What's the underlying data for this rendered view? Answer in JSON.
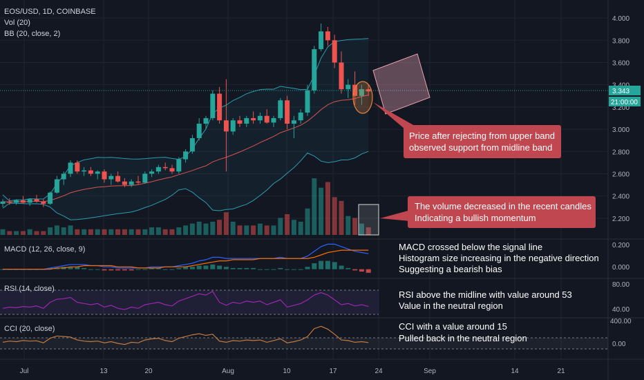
{
  "header": {
    "symbol": "EOS/USD, 1D, COINBASE",
    "vol_label": "Vol (20)",
    "bb_label": "BB (20, close, 2)"
  },
  "price_axis": {
    "ticks": [
      "4.000",
      "3.800",
      "3.600",
      "3.400",
      "3.200",
      "3.000",
      "2.800",
      "2.600",
      "2.400",
      "2.200"
    ],
    "last_price": "3.343",
    "countdown": "21:00:00"
  },
  "indicators": {
    "macd": {
      "label": "MACD (12, 26, close, 9)",
      "ticks": [
        "0.200",
        "0.000"
      ]
    },
    "rsi": {
      "label": "RSI (14, close)",
      "ticks": [
        "80.00",
        "40.00"
      ]
    },
    "cci": {
      "label": "CCI (20, close)",
      "ticks": [
        "400.00",
        "0.00"
      ]
    }
  },
  "time_axis": {
    "ticks": [
      "Jul",
      "13",
      "20",
      "Aug",
      "10",
      "17",
      "24",
      "Sep",
      "14",
      "21"
    ]
  },
  "annotations": {
    "price_note": [
      "Price after rejecting from upper band",
      "observed support from midline band"
    ],
    "volume_note": [
      "The volume decreased in the recent candles",
      "Indicating a bullish momentum"
    ],
    "macd_note": [
      "MACD crossed below the signal line",
      "Histogram size increasing in the negative direction",
      "Suggesting a bearish bias"
    ],
    "rsi_note": [
      "RSI above the midline with value around 53",
      "Value in the neutral region"
    ],
    "cci_note": [
      "CCI with a value around 15",
      "Pulled back in the neutral region"
    ]
  },
  "colors": {
    "up": "#26a69a",
    "down": "#ef5350",
    "bb_band": "#2a9db0",
    "bb_basis": "#d9534f",
    "macd_line": "#2962ff",
    "signal_line": "#ff6d00",
    "rsi_line": "#9c27b0",
    "cci_line": "#c47a3d",
    "note_bg": "#c0464f"
  },
  "chart_data": {
    "type": "candlestick",
    "candles": [
      [
        2.33,
        2.37,
        2.3,
        2.35
      ],
      [
        2.35,
        2.38,
        2.32,
        2.34
      ],
      [
        2.34,
        2.37,
        2.32,
        2.36
      ],
      [
        2.36,
        2.4,
        2.33,
        2.34
      ],
      [
        2.34,
        2.38,
        2.31,
        2.37
      ],
      [
        2.37,
        2.41,
        2.34,
        2.35
      ],
      [
        2.35,
        2.37,
        2.3,
        2.33
      ],
      [
        2.33,
        2.44,
        2.32,
        2.43
      ],
      [
        2.43,
        2.58,
        2.42,
        2.55
      ],
      [
        2.55,
        2.62,
        2.5,
        2.6
      ],
      [
        2.6,
        2.72,
        2.57,
        2.7
      ],
      [
        2.7,
        2.72,
        2.6,
        2.62
      ],
      [
        2.62,
        2.66,
        2.58,
        2.63
      ],
      [
        2.63,
        2.66,
        2.58,
        2.6
      ],
      [
        2.6,
        2.63,
        2.55,
        2.62
      ],
      [
        2.62,
        2.64,
        2.52,
        2.55
      ],
      [
        2.55,
        2.6,
        2.5,
        2.58
      ],
      [
        2.58,
        2.62,
        2.52,
        2.53
      ],
      [
        2.53,
        2.56,
        2.48,
        2.5
      ],
      [
        2.5,
        2.55,
        2.48,
        2.53
      ],
      [
        2.53,
        2.58,
        2.5,
        2.52
      ],
      [
        2.52,
        2.62,
        2.51,
        2.6
      ],
      [
        2.6,
        2.64,
        2.57,
        2.62
      ],
      [
        2.62,
        2.68,
        2.6,
        2.66
      ],
      [
        2.66,
        2.7,
        2.63,
        2.65
      ],
      [
        2.65,
        2.68,
        2.6,
        2.62
      ],
      [
        2.62,
        2.75,
        2.6,
        2.73
      ],
      [
        2.73,
        2.82,
        2.7,
        2.8
      ],
      [
        2.8,
        2.95,
        2.78,
        2.92
      ],
      [
        2.92,
        3.1,
        2.9,
        3.05
      ],
      [
        3.05,
        3.12,
        3.0,
        3.1
      ],
      [
        3.1,
        3.35,
        3.08,
        3.32
      ],
      [
        3.32,
        3.38,
        3.05,
        3.08
      ],
      [
        3.08,
        3.45,
        2.62,
        2.98
      ],
      [
        2.98,
        3.1,
        2.95,
        3.08
      ],
      [
        3.08,
        3.12,
        3.02,
        3.05
      ],
      [
        3.05,
        3.12,
        3.02,
        3.1
      ],
      [
        3.1,
        3.16,
        3.05,
        3.08
      ],
      [
        3.08,
        3.15,
        3.05,
        3.12
      ],
      [
        3.12,
        3.18,
        3.05,
        3.06
      ],
      [
        3.06,
        3.12,
        3.02,
        3.1
      ],
      [
        3.1,
        3.28,
        3.08,
        3.26
      ],
      [
        3.26,
        3.3,
        3.0,
        3.05
      ],
      [
        3.05,
        3.12,
        2.92,
        3.08
      ],
      [
        3.08,
        3.18,
        3.05,
        3.15
      ],
      [
        3.15,
        3.4,
        3.12,
        3.35
      ],
      [
        3.35,
        3.75,
        3.32,
        3.72
      ],
      [
        3.72,
        3.95,
        3.7,
        3.88
      ],
      [
        3.88,
        3.92,
        3.75,
        3.8
      ],
      [
        3.8,
        3.85,
        3.55,
        3.6
      ],
      [
        3.6,
        3.7,
        3.32,
        3.36
      ],
      [
        3.36,
        3.45,
        3.28,
        3.4
      ],
      [
        3.4,
        3.52,
        3.22,
        3.3
      ],
      [
        3.3,
        3.4,
        3.22,
        3.36
      ],
      [
        3.36,
        3.4,
        3.3,
        3.34
      ]
    ],
    "volume": [
      3,
      2,
      2,
      2,
      3,
      2,
      2,
      4,
      5,
      4,
      5,
      3,
      3,
      3,
      3,
      3,
      3,
      3,
      3,
      3,
      3,
      3,
      4,
      4,
      3,
      3,
      4,
      5,
      6,
      7,
      6,
      7,
      8,
      12,
      7,
      5,
      5,
      5,
      6,
      5,
      5,
      9,
      11,
      8,
      7,
      14,
      30,
      25,
      28,
      20,
      18,
      10,
      9,
      6,
      4
    ],
    "macd": [
      0.0,
      0.0,
      0.0,
      0.0,
      0.0,
      0.0,
      0.0,
      0.01,
      0.02,
      0.03,
      0.04,
      0.04,
      0.04,
      0.03,
      0.03,
      0.02,
      0.02,
      0.01,
      0.01,
      0.01,
      0.01,
      0.01,
      0.02,
      0.02,
      0.02,
      0.02,
      0.03,
      0.04,
      0.05,
      0.07,
      0.08,
      0.1,
      0.1,
      0.09,
      0.09,
      0.09,
      0.09,
      0.09,
      0.09,
      0.09,
      0.09,
      0.1,
      0.09,
      0.09,
      0.09,
      0.11,
      0.15,
      0.19,
      0.21,
      0.21,
      0.19,
      0.17,
      0.15,
      0.14,
      0.13
    ],
    "signal": [
      0.0,
      0.0,
      0.0,
      0.0,
      0.0,
      0.0,
      0.0,
      0.0,
      0.01,
      0.01,
      0.02,
      0.02,
      0.03,
      0.03,
      0.03,
      0.03,
      0.03,
      0.02,
      0.02,
      0.02,
      0.01,
      0.01,
      0.01,
      0.01,
      0.02,
      0.02,
      0.02,
      0.02,
      0.03,
      0.04,
      0.05,
      0.06,
      0.07,
      0.07,
      0.08,
      0.08,
      0.08,
      0.08,
      0.09,
      0.09,
      0.09,
      0.09,
      0.09,
      0.09,
      0.09,
      0.09,
      0.1,
      0.12,
      0.14,
      0.15,
      0.16,
      0.16,
      0.16,
      0.16,
      0.16
    ],
    "rsi": [
      50,
      52,
      51,
      53,
      52,
      54,
      50,
      60,
      65,
      66,
      68,
      60,
      58,
      56,
      58,
      52,
      55,
      50,
      48,
      52,
      50,
      56,
      58,
      60,
      56,
      54,
      62,
      66,
      70,
      74,
      72,
      78,
      60,
      55,
      60,
      58,
      62,
      60,
      62,
      56,
      60,
      64,
      52,
      55,
      58,
      64,
      72,
      76,
      72,
      64,
      56,
      58,
      54,
      56,
      53
    ],
    "cci": [
      20,
      40,
      30,
      50,
      40,
      45,
      10,
      90,
      130,
      120,
      110,
      60,
      40,
      30,
      40,
      10,
      30,
      0,
      -20,
      20,
      10,
      60,
      80,
      90,
      50,
      30,
      90,
      120,
      150,
      170,
      140,
      160,
      40,
      20,
      50,
      40,
      60,
      50,
      60,
      20,
      50,
      80,
      10,
      30,
      60,
      120,
      260,
      300,
      250,
      160,
      60,
      50,
      20,
      30,
      15
    ],
    "ylim": [
      2.05,
      4.1
    ]
  }
}
